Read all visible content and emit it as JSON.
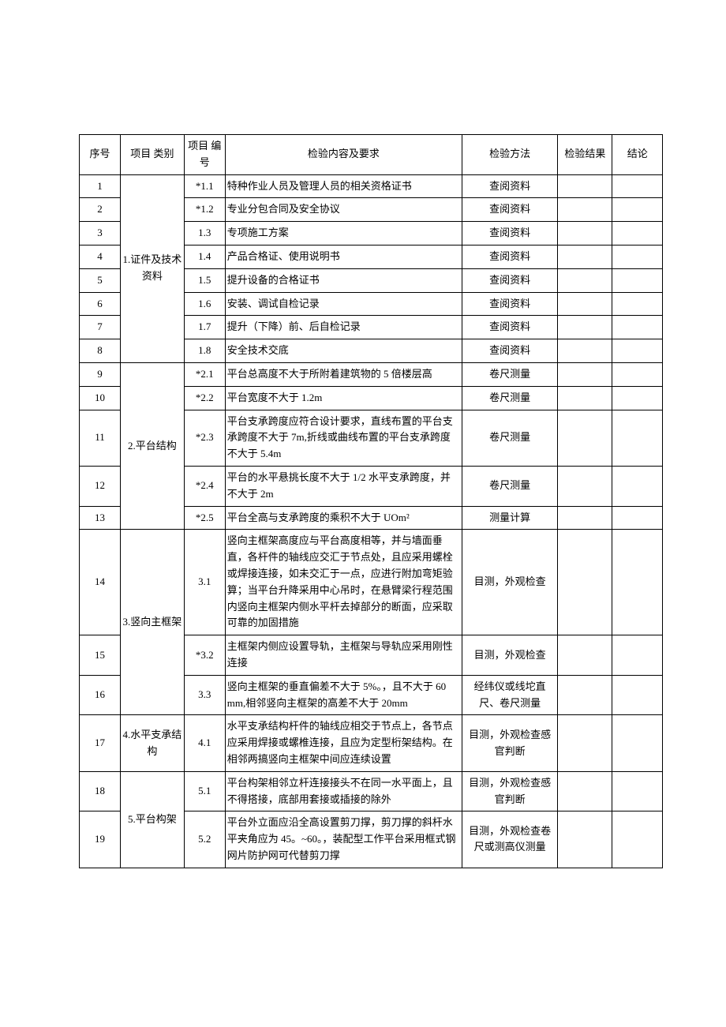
{
  "headers": {
    "seq": "序号",
    "category": "项目\n类别",
    "number": "项目\n编号",
    "content": "检验内容及要求",
    "method": "检验方法",
    "result": "检验结果",
    "conclusion": "结论"
  },
  "categories": [
    {
      "label": "1.证件及技术资料",
      "span": 8
    },
    {
      "label": "2.平台结构",
      "span": 5
    },
    {
      "label": "3.竖向主框架",
      "span": 3
    },
    {
      "label": "4.水平支承结构",
      "span": 1
    },
    {
      "label": "5.平台构架",
      "span": 2
    }
  ],
  "rows": [
    {
      "seq": "1",
      "cat": 0,
      "num": "*1.1",
      "content": "特种作业人员及管理人员的相关资格证书",
      "method": "查阅资料"
    },
    {
      "seq": "2",
      "cat": 0,
      "num": "*1.2",
      "content": "专业分包合同及安全协议",
      "method": "查阅资料"
    },
    {
      "seq": "3",
      "cat": 0,
      "num": "1.3",
      "content": "专项施工方案",
      "method": "查阅资料"
    },
    {
      "seq": "4",
      "cat": 0,
      "num": "1.4",
      "content": "产品合格证、使用说明书",
      "method": "查阅资料"
    },
    {
      "seq": "5",
      "cat": 0,
      "num": "1.5",
      "content": "提升设备的合格证书",
      "method": "查阅资料"
    },
    {
      "seq": "6",
      "cat": 0,
      "num": "1.6",
      "content": "安装、调试自检记录",
      "method": "查阅资料"
    },
    {
      "seq": "7",
      "cat": 0,
      "num": "1.7",
      "content": "提升（下降）前、后自检记录",
      "method": "查阅资料"
    },
    {
      "seq": "8",
      "cat": 0,
      "num": "1.8",
      "content": "安全技术交底",
      "method": "查阅资料"
    },
    {
      "seq": "9",
      "cat": 1,
      "num": "*2.1",
      "content": "平台总高度不大于所附着建筑物的 5 倍楼层高",
      "method": "卷尺测量"
    },
    {
      "seq": "10",
      "cat": 1,
      "num": "*2.2",
      "content": "平台宽度不大于 1.2m",
      "method": "卷尺测量"
    },
    {
      "seq": "11",
      "cat": 1,
      "num": "*2.3",
      "content": "平台支承跨度应符合设计要求，直线布置的平台支承跨度不大于 7m,折线或曲线布置的平台支承跨度不大于 5.4m",
      "method": "卷尺测量"
    },
    {
      "seq": "12",
      "cat": 1,
      "num": "*2.4",
      "content": "平台的水平悬挑长度不大于 1/2 水平支承跨度，并不大于 2m",
      "method": "卷尺测量"
    },
    {
      "seq": "13",
      "cat": 1,
      "num": "*2.5",
      "content": "平台全高与支承跨度的乘积不大于 UOm²",
      "method": "测量计算"
    },
    {
      "seq": "14",
      "cat": 2,
      "num": "3.1",
      "content": "竖向主框架高度应与平台高度相等，并与墙面垂直，各杆件的轴线应交汇于节点处，且应采用螺栓或焊接连接，如未交汇于一点，应进行附加弯矩验算；当平台升降采用中心吊时，在悬臂梁行程范围内竖向主框架内侧水平杆去掉部分的断面，应采取可靠的加固措施",
      "method": "目测，外观检查"
    },
    {
      "seq": "15",
      "cat": 2,
      "num": "*3.2",
      "content": "主框架内侧应设置导轨，主框架与导轨应采用刚性连接",
      "method": "目测，外观检查"
    },
    {
      "seq": "16",
      "cat": 2,
      "num": "3.3",
      "content": "竖向主框架的垂直偏差不大于 5%。，且不大于 60 mm,相邻竖向主框架的高差不大于 20mm",
      "method": "经纬仪或线坨直尺、卷尺测量"
    },
    {
      "seq": "17",
      "cat": 3,
      "num": "4.1",
      "content": "水平支承结构杆件的轴线应相交于节点上，各节点应采用焊接或螺椎连接，且应为定型桁架结构。在相邻两搞竖向主框架中间应连续设置",
      "method": "目测，外观检查感官判断"
    },
    {
      "seq": "18",
      "cat": 4,
      "num": "5.1",
      "content": "平台构架相邻立杆连接接头不在同一水平面上，且不得搭接，底部用套接或插接的除外",
      "method": "目测，外观检查感官判断"
    },
    {
      "seq": "19",
      "cat": 4,
      "num": "5.2",
      "content": "平台外立面应沿全高设置剪刀撑，剪刀撑的斜杆水平夹角应为 45。~60。，装配型工作平台采用框式钢网片防护网可代替剪刀撑",
      "method": "目测，外观检查卷尺或测高仪测量"
    }
  ]
}
